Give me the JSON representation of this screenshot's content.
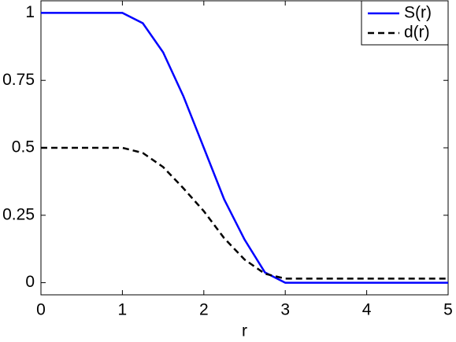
{
  "chart_data": {
    "type": "line",
    "x_label": "r",
    "x": [
      0,
      0.5,
      1,
      1.25,
      1.5,
      1.75,
      2,
      2.25,
      2.5,
      2.75,
      3,
      4,
      5
    ],
    "series": [
      {
        "name": "S(r)",
        "color": "#0000ff",
        "dash": "solid",
        "values": [
          1,
          1,
          1,
          0.962,
          0.854,
          0.691,
          0.5,
          0.309,
          0.16,
          0.038,
          0,
          0,
          0
        ]
      },
      {
        "name": "d(r)",
        "color": "#000000",
        "dash": "dashed",
        "values": [
          0.5,
          0.5,
          0.5,
          0.481,
          0.429,
          0.35,
          0.265,
          0.165,
          0.086,
          0.033,
          0.015,
          0.015,
          0.015
        ]
      }
    ],
    "xlim": [
      0,
      5
    ],
    "xticks": [
      0,
      1,
      2,
      3,
      4,
      5
    ],
    "ylim": [
      -0.045,
      1.045
    ],
    "yticks": [
      0,
      0.25,
      0.5,
      0.75,
      1
    ],
    "legend": "top-right"
  }
}
